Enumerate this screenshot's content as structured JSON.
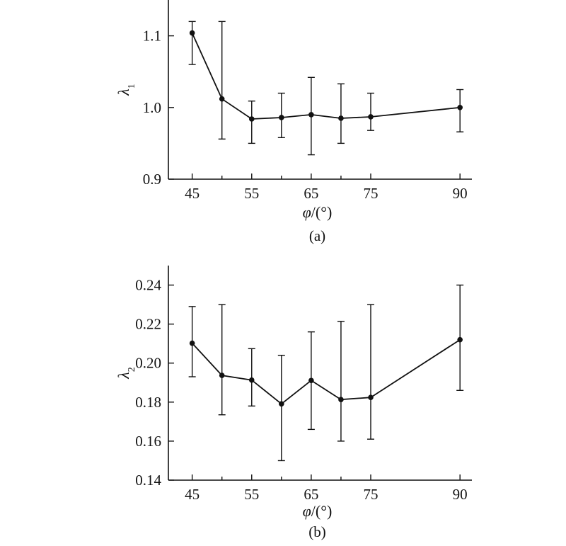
{
  "chart_data": [
    {
      "type": "line",
      "caption": "(a)",
      "xlabel": "φ/(°)",
      "xlabel_var": "φ",
      "xlabel_unit": "/(°)",
      "ylabel": "λ1",
      "ylabel_var": "λ",
      "ylabel_sub": "1",
      "xlim": [
        41,
        92
      ],
      "ylim": [
        0.9,
        1.15
      ],
      "x_ticks": [
        45,
        55,
        65,
        75,
        90
      ],
      "x_minor_ticks": [
        50,
        60,
        70
      ],
      "y_ticks": [
        0.9,
        1.0,
        1.1
      ],
      "y_tick_labels": [
        "0.9",
        "1.0",
        "1.1"
      ],
      "series": [
        {
          "x": [
            45,
            50,
            55,
            60,
            65,
            70,
            75,
            90
          ],
          "y": [
            1.104,
            1.012,
            0.984,
            0.986,
            0.99,
            0.985,
            0.987,
            1.0
          ],
          "err_low": [
            1.06,
            0.956,
            0.95,
            0.958,
            0.934,
            0.95,
            0.968,
            0.966
          ],
          "err_high": [
            1.12,
            1.12,
            1.009,
            1.02,
            1.042,
            1.033,
            1.02,
            1.025
          ]
        }
      ]
    },
    {
      "type": "line",
      "caption": "(b)",
      "xlabel": "φ/(°)",
      "xlabel_var": "φ",
      "xlabel_unit": "/(°)",
      "ylabel": "λ2",
      "ylabel_var": "λ",
      "ylabel_sub": "2",
      "xlim": [
        41,
        92
      ],
      "ylim": [
        0.14,
        0.25
      ],
      "x_ticks": [
        45,
        55,
        65,
        75,
        90
      ],
      "x_minor_ticks": [
        50,
        60,
        70
      ],
      "y_ticks": [
        0.14,
        0.16,
        0.18,
        0.2,
        0.22,
        0.24
      ],
      "y_tick_labels": [
        "0.14",
        "0.16",
        "0.18",
        "0.20",
        "0.22",
        "0.24"
      ],
      "series": [
        {
          "x": [
            45,
            50,
            55,
            60,
            65,
            70,
            75,
            90
          ],
          "y": [
            0.2102,
            0.1937,
            0.1913,
            0.1791,
            0.1911,
            0.1813,
            0.1824,
            0.212
          ],
          "err_low": [
            0.193,
            0.1735,
            0.178,
            0.15,
            0.166,
            0.16,
            0.161,
            0.186
          ],
          "err_high": [
            0.229,
            0.23,
            0.2074,
            0.204,
            0.216,
            0.2214,
            0.23,
            0.24
          ]
        }
      ]
    }
  ]
}
